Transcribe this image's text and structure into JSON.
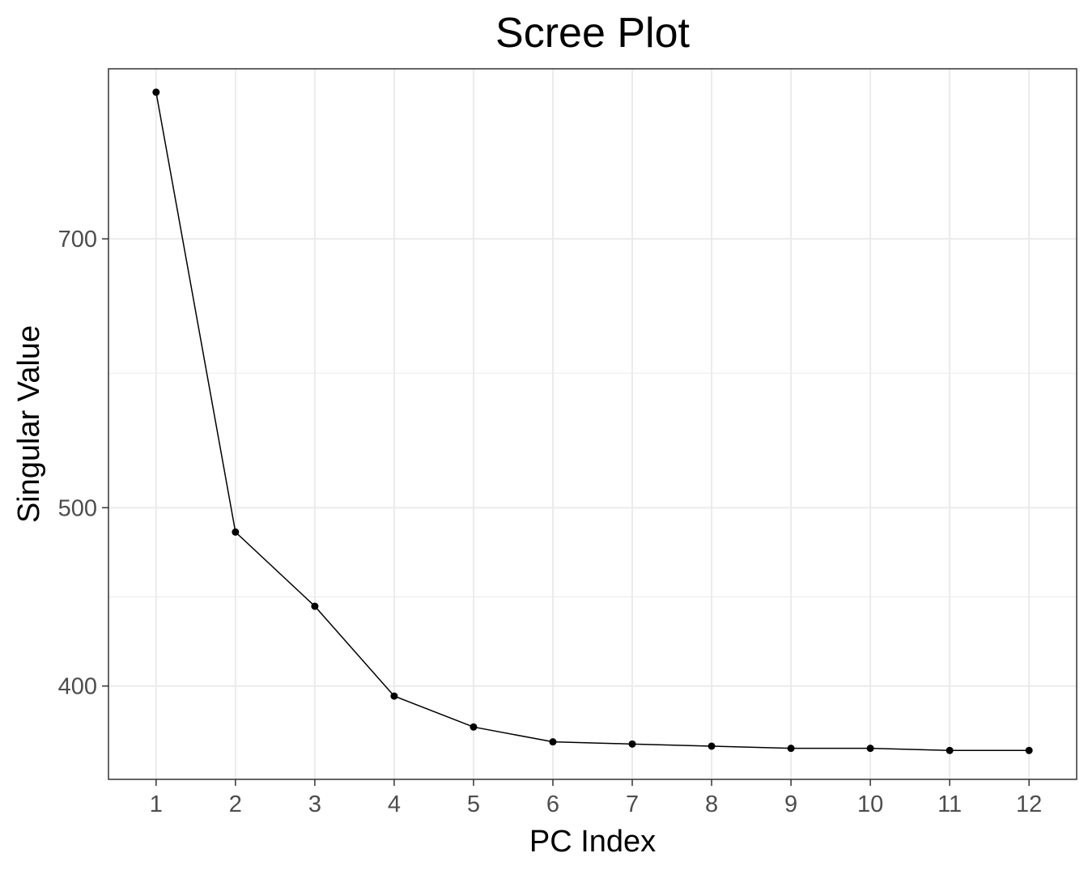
{
  "chart_data": {
    "type": "line",
    "title": "Scree Plot",
    "xlabel": "PC Index",
    "ylabel": "Singular Value",
    "x": [
      1,
      2,
      3,
      4,
      5,
      6,
      7,
      8,
      9,
      10,
      11,
      12
    ],
    "y": [
      841,
      485,
      442,
      395,
      380,
      373,
      372,
      371,
      370,
      370,
      369,
      369
    ],
    "xticks": [
      "1",
      "2",
      "3",
      "4",
      "5",
      "6",
      "7",
      "8",
      "9",
      "10",
      "11",
      "12"
    ],
    "yticks": [
      "400",
      "500",
      "700"
    ],
    "grid": true,
    "legend": "none",
    "colors": {
      "line": "#000000",
      "point": "#000000",
      "grid": "#ebebeb",
      "panel_border": "#333333",
      "tick_label": "#4d4d4d"
    }
  }
}
